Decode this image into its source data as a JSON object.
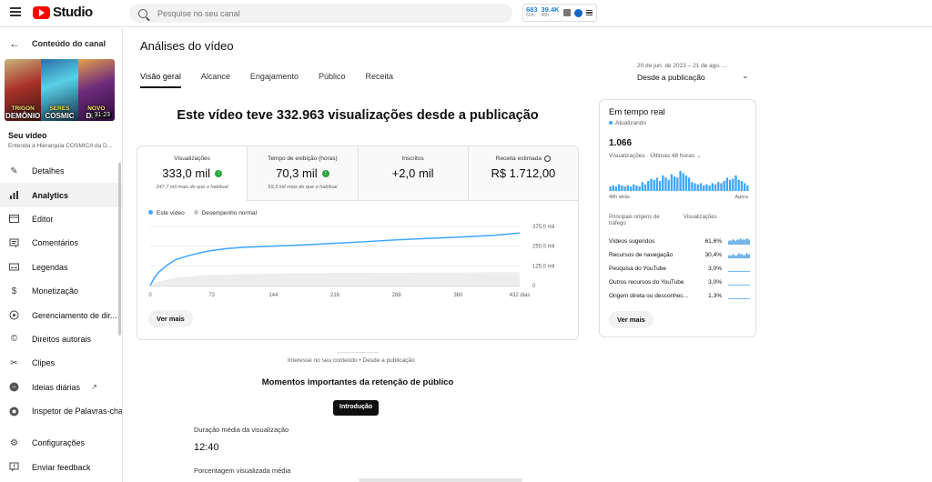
{
  "topbar": {
    "logo_text": "Studio",
    "search_placeholder": "Pesquise no seu canal",
    "extension": {
      "stat1_value": "683",
      "stat1_sub": "60m",
      "stat2_value": "39.4K",
      "stat2_sub": "48h"
    }
  },
  "sidebar": {
    "back_label": "Conteúdo do canal",
    "thumb_captions": [
      {
        "top": "TRIGON",
        "bottom": "DEMÔNIO"
      },
      {
        "top": "SERES",
        "bottom": "COSMIC"
      },
      {
        "top": "NOVO",
        "bottom": "DEL..."
      }
    ],
    "thumb_duration": "31:23",
    "your_video": "Seu vídeo",
    "video_title": "Entenda a Hierarquia CÓSMICA da D...",
    "items": [
      {
        "label": "Detalhes",
        "icon": "pencil-icon"
      },
      {
        "label": "Analytics",
        "icon": "analytics-icon",
        "active": true
      },
      {
        "label": "Editor",
        "icon": "editor-icon"
      },
      {
        "label": "Comentários",
        "icon": "comments-icon"
      },
      {
        "label": "Legendas",
        "icon": "subtitles-icon"
      },
      {
        "label": "Monetização",
        "icon": "dollar-icon"
      },
      {
        "label": "Gerenciamento de dir...",
        "icon": "copyright-management-icon"
      },
      {
        "label": "Direitos autorais",
        "icon": "copyright-icon"
      },
      {
        "label": "Clipes",
        "icon": "scissors-icon"
      },
      {
        "label": "Ideias diárias",
        "icon": "ideas-icon",
        "external": true
      },
      {
        "label": "Inspetor de Palavras-chave",
        "icon": "keyword-inspector-icon"
      }
    ],
    "bottom_items": [
      {
        "label": "Configurações",
        "icon": "gear-icon"
      },
      {
        "label": "Enviar feedback",
        "icon": "feedback-icon"
      }
    ]
  },
  "main": {
    "title": "Análises do vídeo",
    "tabs": [
      "Visão geral",
      "Alcance",
      "Engajamento",
      "Público",
      "Receita"
    ],
    "date_range": "20 de jun. de 2023 – 21 de ago. ...",
    "date_label": "Desde a publicação",
    "headline": "Este vídeo teve 332.963 visualizações desde a publicação",
    "metrics": [
      {
        "label": "Visualizações",
        "value": "333,0 mil",
        "sub": "247,7 mil mais do que o habitual",
        "up": true
      },
      {
        "label": "Tempo de exibição (horas)",
        "value": "70,3 mil",
        "sub": "59,3 mil mais do que o habitual",
        "up": true
      },
      {
        "label": "Inscritos",
        "value": "+2,0 mil",
        "sub": ""
      },
      {
        "label": "Receita estimada",
        "value": "R$ 1.712,00",
        "sub": ""
      }
    ],
    "see_more": "Ver mais",
    "interest_text": "Interesse no seu conteúdo • Desde a publicação",
    "retention_title": "Momentos importantes da retenção de público",
    "retention_chip": "Introdução",
    "avg_duration_label": "Duração média da visualização",
    "avg_duration_value": "12:40",
    "avg_percent_label": "Porcentagem visualizada média"
  },
  "chart_data": {
    "type": "line",
    "legend": [
      "Este vídeo",
      "Desempenho normal"
    ],
    "x_ticks": [
      "0",
      "72",
      "144",
      "216",
      "288",
      "360",
      "432 dias"
    ],
    "y_ticks": [
      "0",
      "125,0 mil",
      "250,0 mil",
      "375,0 mil"
    ],
    "xlim": [
      0,
      432
    ],
    "ylim": [
      0,
      375000
    ],
    "series": [
      {
        "name": "Este vídeo",
        "color": "#3ea6ff",
        "x": [
          0,
          5,
          10,
          20,
          30,
          45,
          60,
          72,
          90,
          110,
          144,
          180,
          216,
          250,
          288,
          320,
          360,
          400,
          432
        ],
        "y": [
          0,
          50000,
          85000,
          130000,
          165000,
          190000,
          210000,
          222000,
          235000,
          243000,
          250000,
          258000,
          268000,
          278000,
          290000,
          298000,
          307000,
          318000,
          333000
        ]
      },
      {
        "name": "Desempenho normal",
        "color": "#c7c7c7",
        "x": [
          0,
          10,
          30,
          60,
          72,
          144,
          216,
          288,
          360,
          432
        ],
        "y": [
          0,
          25000,
          50000,
          65000,
          68000,
          76000,
          80000,
          82000,
          84000,
          85000
        ]
      }
    ]
  },
  "realtime": {
    "title": "Em tempo real",
    "updating": "Atualizando",
    "count": "1.066",
    "subtitle": "Visualizações · Últimas 48 horas",
    "axis_left": "48h atrás",
    "axis_right": "Agora",
    "bars": [
      4,
      5,
      4,
      6,
      5,
      4,
      5,
      4,
      6,
      5,
      4,
      8,
      6,
      9,
      11,
      10,
      12,
      9,
      14,
      12,
      10,
      15,
      13,
      12,
      18,
      16,
      14,
      12,
      8,
      7,
      6,
      7,
      5,
      6,
      5,
      7,
      6,
      8,
      7,
      9,
      12,
      10,
      11,
      14,
      10,
      9,
      7,
      5
    ],
    "sources_header": "Principais origens de tráfego",
    "views_header": "Visualizações",
    "see_more": "Ver mais",
    "sources": [
      {
        "name": "Vídeos sugeridos",
        "pct": "61,6%",
        "spark": [
          3,
          4,
          3,
          5,
          4,
          3,
          5,
          4,
          6,
          4,
          5,
          4,
          6,
          5,
          4
        ]
      },
      {
        "name": "Recursos de navegação",
        "pct": "30,4%",
        "spark": [
          2,
          3,
          2,
          4,
          3,
          2,
          3,
          5,
          3,
          4,
          2,
          3,
          5,
          3,
          4
        ]
      },
      {
        "name": "Pesquisa do YouTube",
        "pct": "3,0%",
        "spark": [
          0.5,
          0.5,
          0.5,
          0.5,
          0.5,
          0.5,
          0.5,
          0.5,
          0.5,
          0.5,
          0.5,
          0.5,
          0.5,
          0.5,
          0.5
        ]
      },
      {
        "name": "Outros recursos do YouTube",
        "pct": "3,0%",
        "spark": [
          0.5,
          0.5,
          0.5,
          0.5,
          0.5,
          0.5,
          0.5,
          0.5,
          0.5,
          0.5,
          0.5,
          0.5,
          0.5,
          0.5,
          0.5
        ]
      },
      {
        "name": "Origem direta ou desconhec...",
        "pct": "1,3%",
        "spark": [
          0.5,
          0.5,
          0.5,
          0.5,
          0.5,
          0.5,
          0.5,
          0.5,
          0.5,
          0.5,
          0.5,
          0.5,
          0.5,
          0.5,
          0.5
        ]
      }
    ]
  }
}
